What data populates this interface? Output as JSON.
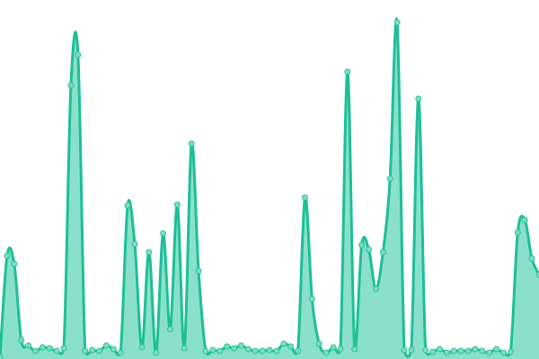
{
  "chart_data": {
    "type": "area",
    "title": "",
    "xlabel": "",
    "ylabel": "",
    "grid": false,
    "axes_visible": false,
    "smooth": true,
    "ylim": [
      0,
      400
    ],
    "colors": {
      "line": "#1dbf97",
      "fill": "#8ae0cc",
      "point_fill": "#7fdcc3",
      "point_stroke": "#2cc49d"
    },
    "series": [
      {
        "values": [
          2,
          115,
          106,
          21,
          15,
          9,
          13,
          12,
          9,
          12,
          305,
          339,
          9,
          10,
          9,
          15,
          11,
          7,
          171,
          128,
          13,
          119,
          7,
          140,
          33,
          172,
          12,
          240,
          98,
          9,
          10,
          9,
          14,
          12,
          15,
          11,
          9,
          9,
          10,
          9,
          17,
          14,
          9,
          180,
          67,
          17,
          7,
          13,
          11,
          320,
          11,
          127,
          122,
          78,
          119,
          201,
          375,
          10,
          10,
          290,
          10,
          8,
          11,
          7,
          9,
          9,
          9,
          11,
          9,
          7,
          11,
          7,
          8,
          141,
          155,
          112,
          94
        ]
      }
    ]
  }
}
